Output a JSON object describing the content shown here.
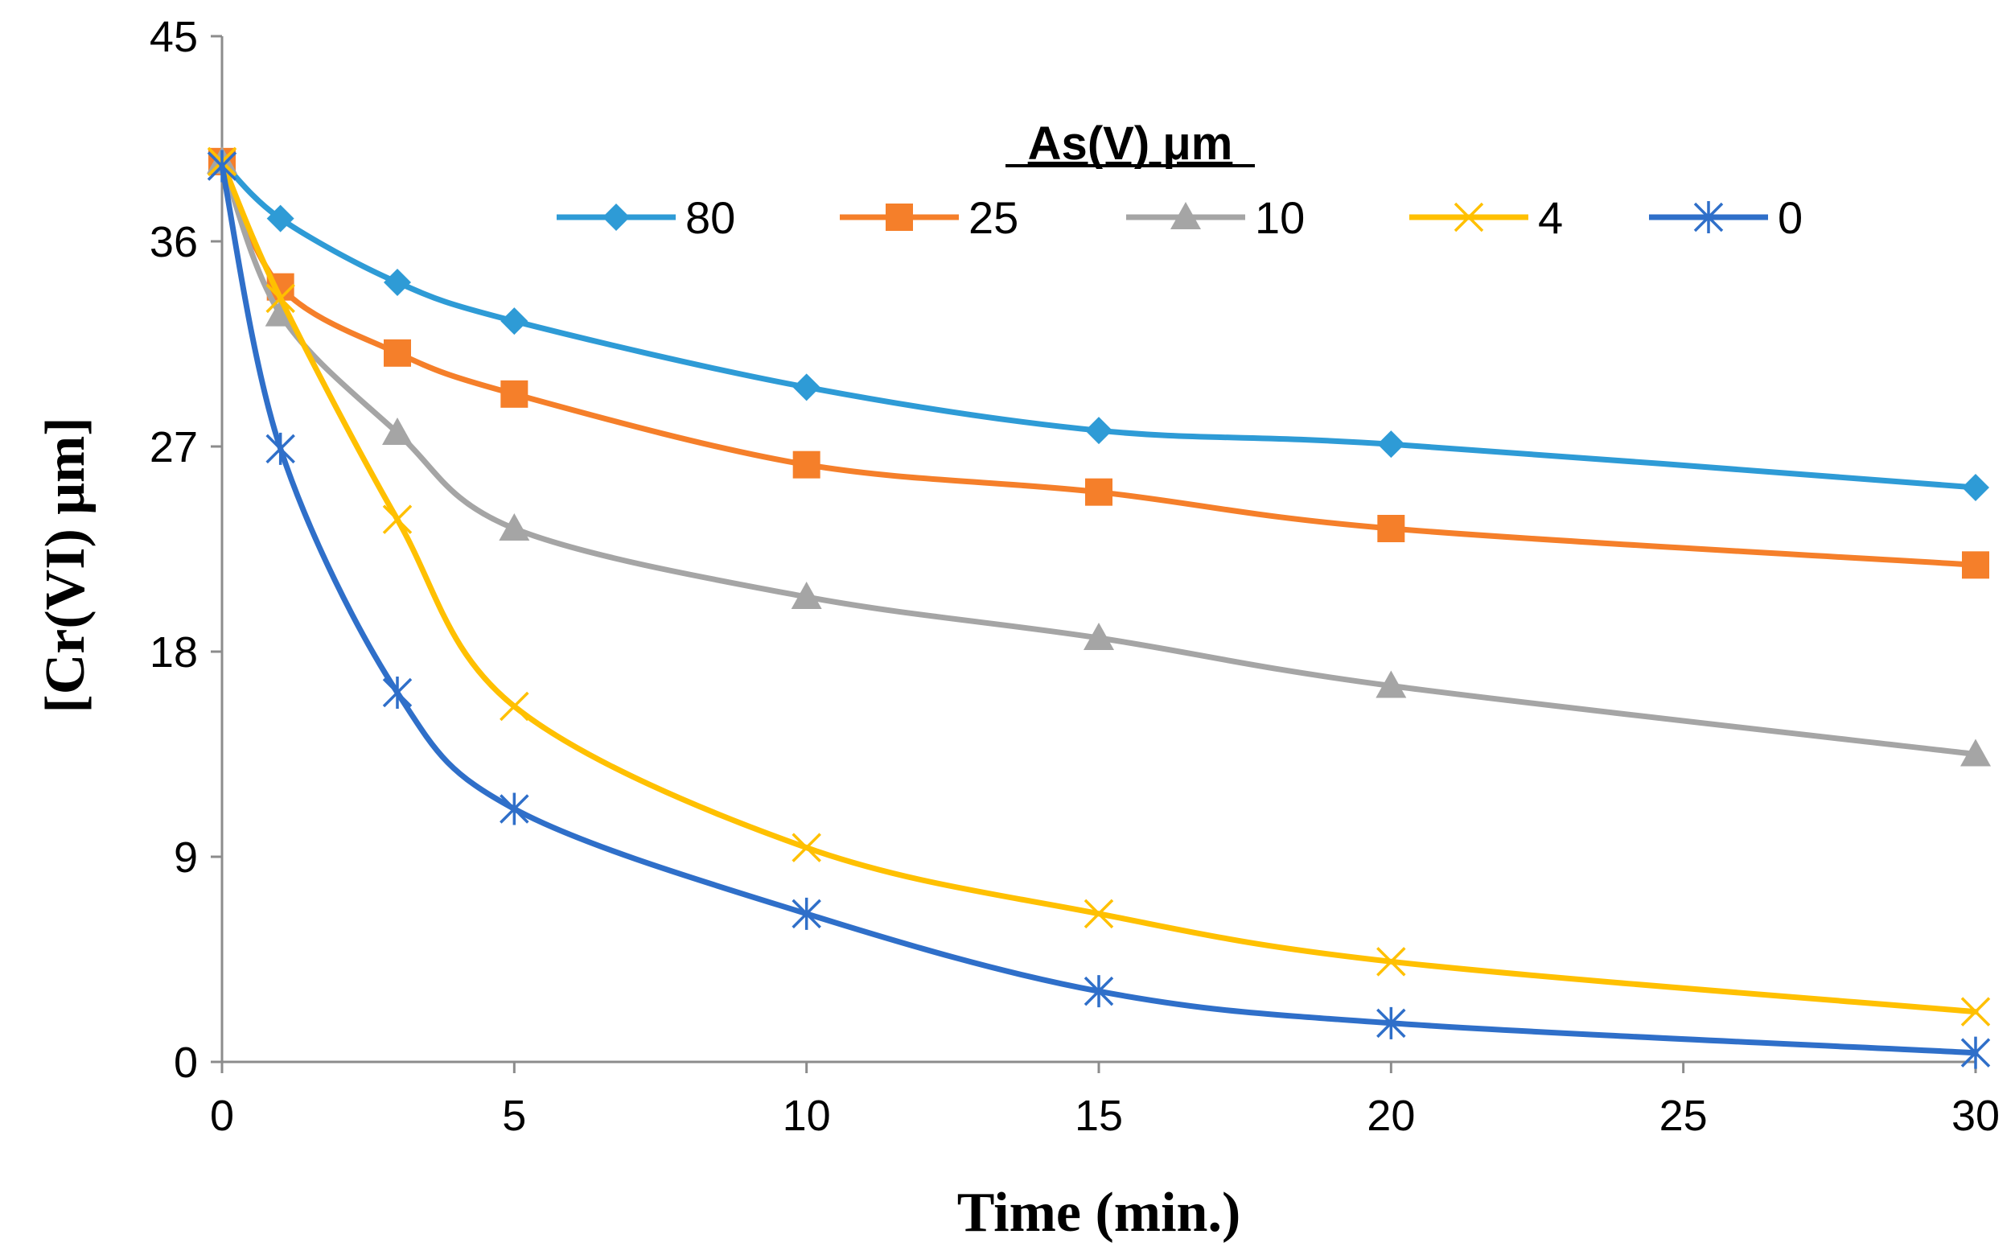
{
  "chart_data": {
    "type": "line",
    "title": "",
    "xlabel": "Time (min.)",
    "ylabel": "[Cr(VI) μm]",
    "xlim": [
      0,
      30
    ],
    "ylim": [
      0,
      45
    ],
    "xticks": [
      0,
      5,
      10,
      15,
      20,
      25,
      30
    ],
    "yticks": [
      0,
      9,
      18,
      27,
      36,
      45
    ],
    "grid": false,
    "legend": {
      "title": "As(V) μm",
      "position": "top-center"
    },
    "x": [
      0,
      1,
      3,
      5,
      10,
      15,
      20,
      30
    ],
    "series": [
      {
        "name": "80",
        "color": "#2E9BD6",
        "marker": "diamond",
        "values": [
          39.5,
          37.0,
          34.2,
          32.5,
          29.6,
          27.7,
          27.1,
          25.2
        ]
      },
      {
        "name": "25",
        "color": "#F57F2A",
        "marker": "square",
        "values": [
          39.5,
          34.0,
          31.1,
          29.3,
          26.2,
          25.0,
          23.4,
          21.8
        ]
      },
      {
        "name": "10",
        "color": "#A5A5A5",
        "marker": "triangle",
        "values": [
          39.5,
          32.8,
          27.6,
          23.4,
          20.4,
          18.6,
          16.5,
          13.5
        ]
      },
      {
        "name": "4",
        "color": "#FFC000",
        "marker": "x",
        "values": [
          39.5,
          33.5,
          23.8,
          15.6,
          9.4,
          6.5,
          4.4,
          2.2
        ]
      },
      {
        "name": "0",
        "color": "#2F6FC9",
        "marker": "asterisk",
        "values": [
          39.3,
          26.9,
          16.2,
          11.1,
          6.5,
          3.1,
          1.7,
          0.4
        ]
      }
    ]
  }
}
